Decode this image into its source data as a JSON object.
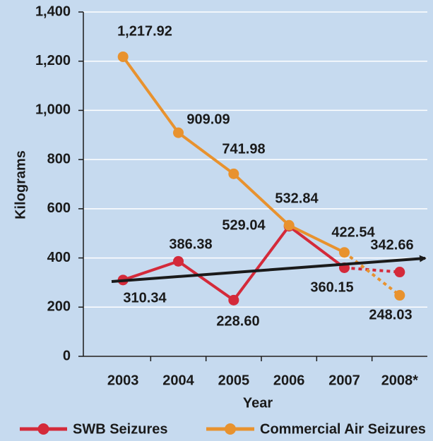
{
  "chart_data": {
    "type": "line",
    "x_label": "Year",
    "y_label": "Kilograms",
    "categories": [
      "2003",
      "2004",
      "2005",
      "2006",
      "2007",
      "2008*"
    ],
    "series": [
      {
        "name": "SWB Seizures",
        "color": "#d42a3a",
        "values": [
          310.34,
          386.38,
          228.6,
          529.04,
          360.15,
          342.66
        ],
        "value_labels": [
          "310.34",
          "386.38",
          "228.60",
          "529.04",
          "360.15",
          "342.66"
        ]
      },
      {
        "name": "Commercial Air Seizures",
        "color": "#e8922e",
        "values": [
          1217.92,
          909.09,
          741.98,
          532.84,
          422.54,
          248.03
        ],
        "value_labels": [
          "1,217.92",
          "909.09",
          "741.98",
          "532.84",
          "422.54",
          "248.03"
        ]
      }
    ],
    "ylim": [
      0,
      1400
    ],
    "yticks": [
      0,
      200,
      400,
      600,
      800,
      {
        "value": 1000,
        "label": "1,000"
      },
      {
        "value": 1200,
        "label": "1,200"
      },
      {
        "value": 1400,
        "label": "1,400"
      }
    ],
    "grid": true
  }
}
